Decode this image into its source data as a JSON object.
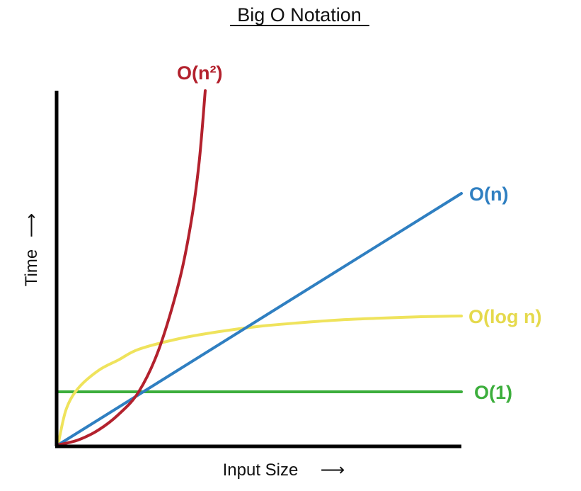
{
  "chart_data": {
    "type": "line",
    "title": "Big O Notation",
    "xlabel": "Input Size",
    "ylabel": "Time",
    "xlim": [
      0,
      100
    ],
    "ylim": [
      0,
      100
    ],
    "grid": false,
    "legend": "inline labels at line ends",
    "series": [
      {
        "name": "O(1)",
        "color": "#3cae3c",
        "x": [
          0,
          100
        ],
        "y": [
          15,
          15
        ]
      },
      {
        "name": "O(log n)",
        "color": "#efe35c",
        "x": [
          0,
          2,
          5,
          10,
          15,
          20,
          30,
          40,
          50,
          60,
          70,
          80,
          90,
          100
        ],
        "y": [
          0,
          10,
          16,
          21,
          24,
          27,
          30,
          32,
          33.5,
          34.5,
          35.3,
          35.8,
          36.2,
          36.4
        ]
      },
      {
        "name": "O(n)",
        "color": "#2f7fc1",
        "x": [
          0,
          100
        ],
        "y": [
          0,
          71
        ]
      },
      {
        "name": "O(n²)",
        "color": "#b3212d",
        "x": [
          0,
          5,
          10,
          15,
          20,
          25,
          30,
          33,
          35,
          36.5
        ],
        "y": [
          0,
          1.4,
          4.2,
          8.6,
          15,
          27,
          46,
          63,
          80,
          100
        ]
      }
    ]
  },
  "labels": {
    "title": "Big O Notation",
    "xlabel": "Input Size",
    "ylabel": "Time",
    "x_arrow": "⟶",
    "y_arrow": "⟶",
    "series": {
      "o1": "O(1)",
      "ologn": "O(log n)",
      "on": "O(n)",
      "on2": "O(n²)"
    }
  },
  "colors": {
    "axis": "#000000",
    "text": "#111111"
  }
}
